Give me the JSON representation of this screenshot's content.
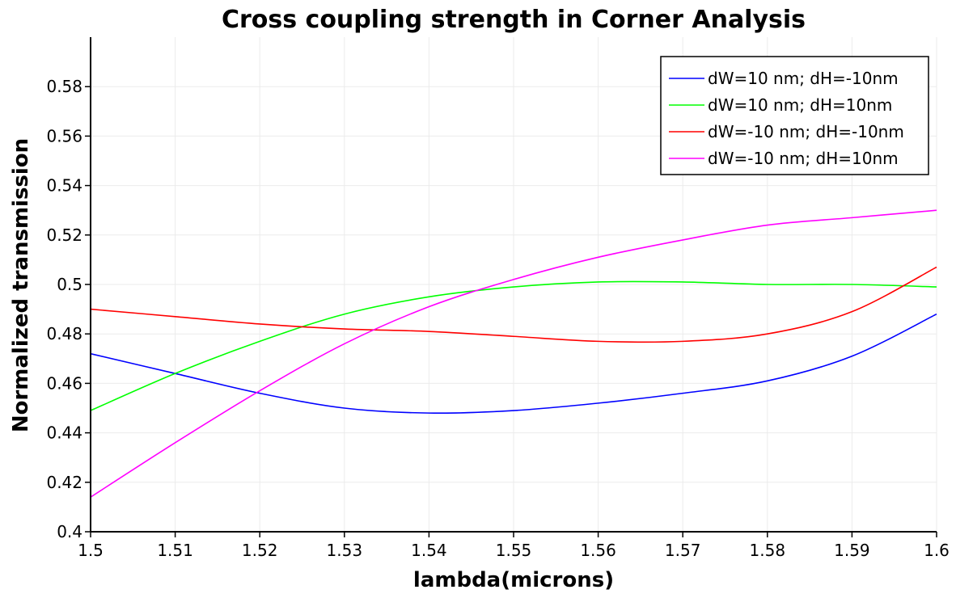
{
  "chart_data": {
    "type": "line",
    "title": "Cross coupling strength in Corner Analysis",
    "xlabel": "lambda(microns)",
    "ylabel": "Normalized transmission",
    "xlim": [
      1.5,
      1.6
    ],
    "ylim": [
      0.4,
      0.6
    ],
    "x_ticks": [
      "1.5",
      "1.51",
      "1.52",
      "1.53",
      "1.54",
      "1.55",
      "1.56",
      "1.57",
      "1.58",
      "1.59",
      "1.6"
    ],
    "y_ticks": [
      "0.4",
      "0.42",
      "0.44",
      "0.46",
      "0.48",
      "0.5",
      "0.52",
      "0.54",
      "0.56",
      "0.58"
    ],
    "grid": true,
    "legend_position": "top-right",
    "x": [
      1.5,
      1.51,
      1.52,
      1.53,
      1.54,
      1.55,
      1.56,
      1.57,
      1.58,
      1.59,
      1.6
    ],
    "series": [
      {
        "name": "dW=10 nm; dH=-10nm",
        "color": "#0000ff",
        "values": [
          0.472,
          0.464,
          0.456,
          0.45,
          0.448,
          0.449,
          0.452,
          0.456,
          0.461,
          0.471,
          0.488
        ]
      },
      {
        "name": "dW=10 nm; dH=10nm",
        "color": "#00ff00",
        "values": [
          0.449,
          0.464,
          0.477,
          0.488,
          0.495,
          0.499,
          0.501,
          0.501,
          0.5,
          0.5,
          0.499
        ]
      },
      {
        "name": "dW=-10 nm; dH=-10nm",
        "color": "#ff0000",
        "values": [
          0.49,
          0.487,
          0.484,
          0.482,
          0.481,
          0.479,
          0.477,
          0.477,
          0.48,
          0.489,
          0.507
        ]
      },
      {
        "name": "dW=-10 nm; dH=10nm",
        "color": "#ff00ff",
        "values": [
          0.414,
          0.436,
          0.457,
          0.476,
          0.491,
          0.502,
          0.511,
          0.518,
          0.524,
          0.527,
          0.53
        ]
      }
    ]
  }
}
